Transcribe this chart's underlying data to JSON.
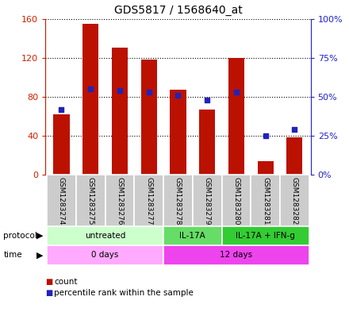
{
  "title": "GDS5817 / 1568640_at",
  "samples": [
    "GSM1283274",
    "GSM1283275",
    "GSM1283276",
    "GSM1283277",
    "GSM1283278",
    "GSM1283279",
    "GSM1283280",
    "GSM1283281",
    "GSM1283282"
  ],
  "counts": [
    62,
    155,
    130,
    118,
    87,
    67,
    120,
    14,
    38
  ],
  "percentiles": [
    42,
    55,
    54,
    53,
    51,
    48,
    53,
    25,
    29
  ],
  "ylim_left": [
    0,
    160
  ],
  "ylim_right": [
    0,
    100
  ],
  "yticks_left": [
    0,
    40,
    80,
    120,
    160
  ],
  "yticks_right": [
    0,
    25,
    50,
    75,
    100
  ],
  "yticklabels_left": [
    "0",
    "40",
    "80",
    "120",
    "160"
  ],
  "yticklabels_right": [
    "0%",
    "25%",
    "50%",
    "75%",
    "100%"
  ],
  "bar_color": "#bb1100",
  "dot_color": "#2222bb",
  "protocol_groups": [
    {
      "label": "untreated",
      "start": 0,
      "end": 4,
      "color": "#ccffcc"
    },
    {
      "label": "IL-17A",
      "start": 4,
      "end": 6,
      "color": "#66dd66"
    },
    {
      "label": "IL-17A + IFN-g",
      "start": 6,
      "end": 9,
      "color": "#33cc33"
    }
  ],
  "time_groups": [
    {
      "label": "0 days",
      "start": 0,
      "end": 4,
      "color": "#ffaaff"
    },
    {
      "label": "12 days",
      "start": 4,
      "end": 9,
      "color": "#ee44ee"
    }
  ],
  "sample_bg_color": "#cccccc",
  "left_axis_color": "#cc2200",
  "right_axis_color": "#2222cc",
  "figsize": [
    4.4,
    3.93
  ],
  "dpi": 100
}
